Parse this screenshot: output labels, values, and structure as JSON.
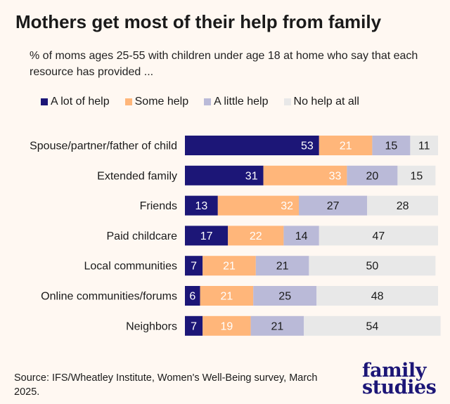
{
  "title": "Mothers get most of their help from family",
  "subtitle": "% of moms ages 25-55 with children under age 18 at home who say that each resource has provided ...",
  "source": "Source: IFS/Wheatley Institute, Women's Well-Being survey, March 2025.",
  "logo": {
    "line1": "family",
    "line2": "studies"
  },
  "chart_data": {
    "type": "bar",
    "orientation": "horizontal",
    "stacked": true,
    "legend_position": "top",
    "grid": false,
    "categories": [
      "Spouse/partner/father of child",
      "Extended family",
      "Friends",
      "Paid childcare",
      "Local communities",
      "Online communities/forums",
      "Neighbors"
    ],
    "series": [
      {
        "name": "A lot of help",
        "color": "#1c1677",
        "label_color": "#ffffff",
        "values": [
          53,
          31,
          13,
          17,
          7,
          6,
          7
        ]
      },
      {
        "name": "Some help",
        "color": "#ffb67a",
        "label_color": "#ffffff",
        "values": [
          21,
          33,
          32,
          22,
          21,
          21,
          19
        ]
      },
      {
        "name": "A little help",
        "color": "#babad8",
        "label_color": "#1a1a1a",
        "values": [
          15,
          20,
          27,
          14,
          21,
          25,
          21
        ]
      },
      {
        "name": "No help at all",
        "color": "#e8e8e8",
        "label_color": "#1a1a1a",
        "values": [
          11,
          15,
          28,
          47,
          50,
          48,
          54
        ]
      }
    ]
  }
}
